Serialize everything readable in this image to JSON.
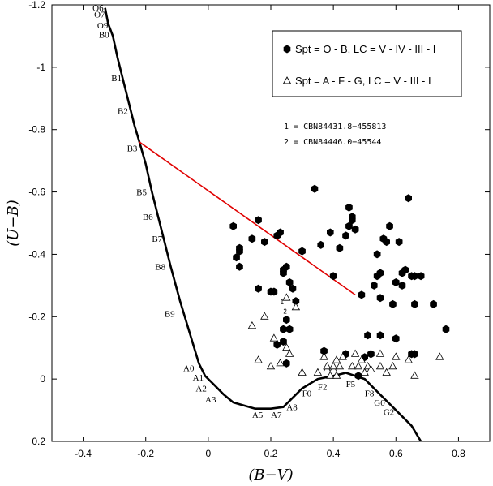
{
  "chart_data": {
    "type": "scatter",
    "xlabel": "(B−V)",
    "ylabel": "(U−B)",
    "xlim": [
      -0.5,
      0.9
    ],
    "ylim": [
      -1.2,
      0.2
    ],
    "y_inverted": true,
    "xticks": [
      {
        "value": -0.4,
        "label": "-0.4"
      },
      {
        "value": -0.2,
        "label": "-0.2"
      },
      {
        "value": 0,
        "label": "0"
      },
      {
        "value": 0.2,
        "label": "0.2"
      },
      {
        "value": 0.4,
        "label": "0.4"
      },
      {
        "value": 0.6,
        "label": "0.6"
      },
      {
        "value": 0.8,
        "label": "0.8"
      }
    ],
    "yticks": [
      {
        "value": -1.2,
        "label": "-1.2"
      },
      {
        "value": -1.0,
        "label": "-1"
      },
      {
        "value": -0.8,
        "label": "-0.8"
      },
      {
        "value": -0.6,
        "label": "-0.6"
      },
      {
        "value": -0.4,
        "label": "-0.4"
      },
      {
        "value": -0.2,
        "label": "-0.2"
      },
      {
        "value": 0,
        "label": "0"
      },
      {
        "value": 0.2,
        "label": "0.2"
      }
    ],
    "legend": {
      "placement": "top-right",
      "entries": [
        {
          "marker": "filled-hexagon",
          "label": "Spt = O - B, LC = V - IV - III - I"
        },
        {
          "marker": "open-triangle",
          "label": "Spt = A - F - G, LC = V - III - I"
        }
      ]
    },
    "annotations": [
      "1 = CBN84431.8−455813",
      "2 = CBN84446.0−45544"
    ],
    "point_labels": [
      {
        "text": "1",
        "x": 0.23,
        "y": -0.24
      },
      {
        "text": "2",
        "x": 0.24,
        "y": -0.21
      }
    ],
    "intrinsic_sequence": {
      "color": "#000000",
      "points": [
        [
          -0.33,
          -1.19
        ],
        [
          -0.32,
          -1.14
        ],
        [
          -0.305,
          -1.1
        ],
        [
          -0.29,
          -1.03
        ],
        [
          -0.27,
          -0.95
        ],
        [
          -0.25,
          -0.87
        ],
        [
          -0.235,
          -0.81
        ],
        [
          -0.22,
          -0.76
        ],
        [
          -0.2,
          -0.69
        ],
        [
          -0.18,
          -0.6
        ],
        [
          -0.16,
          -0.52
        ],
        [
          -0.14,
          -0.44
        ],
        [
          -0.12,
          -0.36
        ],
        [
          -0.09,
          -0.25
        ],
        [
          -0.06,
          -0.15
        ],
        [
          -0.03,
          -0.05
        ],
        [
          -0.01,
          -0.01
        ],
        [
          0.02,
          0.02
        ],
        [
          0.05,
          0.05
        ],
        [
          0.08,
          0.075
        ],
        [
          0.15,
          0.095
        ],
        [
          0.2,
          0.095
        ],
        [
          0.24,
          0.09
        ],
        [
          0.3,
          0.03
        ],
        [
          0.35,
          0.0
        ],
        [
          0.4,
          -0.01
        ],
        [
          0.44,
          -0.02
        ],
        [
          0.5,
          0.0
        ],
        [
          0.55,
          0.05
        ],
        [
          0.6,
          0.1
        ],
        [
          0.65,
          0.15
        ],
        [
          0.68,
          0.2
        ]
      ]
    },
    "sequence_labels": [
      {
        "text": "O6",
        "x": -0.37,
        "y": -1.18
      },
      {
        "text": "O7",
        "x": -0.365,
        "y": -1.16
      },
      {
        "text": "O9",
        "x": -0.355,
        "y": -1.125
      },
      {
        "text": "B0",
        "x": -0.35,
        "y": -1.095
      },
      {
        "text": "B1",
        "x": -0.31,
        "y": -0.955
      },
      {
        "text": "B2",
        "x": -0.29,
        "y": -0.85
      },
      {
        "text": "B3",
        "x": -0.26,
        "y": -0.73
      },
      {
        "text": "B5",
        "x": -0.23,
        "y": -0.59
      },
      {
        "text": "B6",
        "x": -0.21,
        "y": -0.51
      },
      {
        "text": "B7",
        "x": -0.18,
        "y": -0.44
      },
      {
        "text": "B8",
        "x": -0.17,
        "y": -0.35
      },
      {
        "text": "B9",
        "x": -0.14,
        "y": -0.2
      },
      {
        "text": "A0",
        "x": -0.08,
        "y": -0.025
      },
      {
        "text": "A1",
        "x": -0.05,
        "y": 0.005
      },
      {
        "text": "A2",
        "x": -0.04,
        "y": 0.04
      },
      {
        "text": "A3",
        "x": -0.01,
        "y": 0.075
      },
      {
        "text": "A5",
        "x": 0.14,
        "y": 0.125
      },
      {
        "text": "A7",
        "x": 0.2,
        "y": 0.125
      },
      {
        "text": "A8",
        "x": 0.25,
        "y": 0.1
      },
      {
        "text": "F0",
        "x": 0.3,
        "y": 0.055
      },
      {
        "text": "F2",
        "x": 0.35,
        "y": 0.035
      },
      {
        "text": "F5",
        "x": 0.44,
        "y": 0.025
      },
      {
        "text": "F8",
        "x": 0.5,
        "y": 0.055
      },
      {
        "text": "G0",
        "x": 0.53,
        "y": 0.085
      },
      {
        "text": "G2",
        "x": 0.56,
        "y": 0.115
      }
    ],
    "reddening_line": {
      "color": "#e00000",
      "points": [
        [
          -0.22,
          -0.76
        ],
        [
          0.47,
          -0.27
        ]
      ]
    },
    "series": [
      {
        "name": "Spt = O - B, LC = V - IV - III - I",
        "marker": "filled-hexagon",
        "color": "#000000",
        "points": [
          [
            0.08,
            -0.49
          ],
          [
            0.09,
            -0.39
          ],
          [
            0.1,
            -0.42
          ],
          [
            0.1,
            -0.41
          ],
          [
            0.1,
            -0.36
          ],
          [
            0.14,
            -0.45
          ],
          [
            0.16,
            -0.51
          ],
          [
            0.16,
            -0.29
          ],
          [
            0.18,
            -0.44
          ],
          [
            0.2,
            -0.28
          ],
          [
            0.21,
            -0.28
          ],
          [
            0.22,
            -0.46
          ],
          [
            0.23,
            -0.47
          ],
          [
            0.24,
            -0.35
          ],
          [
            0.24,
            -0.34
          ],
          [
            0.25,
            -0.36
          ],
          [
            0.26,
            -0.31
          ],
          [
            0.27,
            -0.29
          ],
          [
            0.28,
            -0.25
          ],
          [
            0.3,
            -0.41
          ],
          [
            0.22,
            -0.11
          ],
          [
            0.24,
            -0.12
          ],
          [
            0.25,
            -0.19
          ],
          [
            0.26,
            -0.16
          ],
          [
            0.24,
            -0.16
          ],
          [
            0.25,
            -0.05
          ],
          [
            0.34,
            -0.61
          ],
          [
            0.36,
            -0.43
          ],
          [
            0.37,
            -0.09
          ],
          [
            0.39,
            -0.47
          ],
          [
            0.4,
            -0.33
          ],
          [
            0.42,
            -0.42
          ],
          [
            0.44,
            -0.46
          ],
          [
            0.45,
            -0.49
          ],
          [
            0.45,
            -0.55
          ],
          [
            0.46,
            -0.52
          ],
          [
            0.47,
            -0.48
          ],
          [
            0.46,
            -0.51
          ],
          [
            0.44,
            -0.08
          ],
          [
            0.48,
            -0.01
          ],
          [
            0.49,
            -0.27
          ],
          [
            0.5,
            -0.07
          ],
          [
            0.51,
            -0.14
          ],
          [
            0.52,
            -0.08
          ],
          [
            0.53,
            -0.3
          ],
          [
            0.54,
            -0.33
          ],
          [
            0.55,
            -0.34
          ],
          [
            0.55,
            -0.26
          ],
          [
            0.55,
            -0.14
          ],
          [
            0.57,
            -0.44
          ],
          [
            0.58,
            -0.49
          ],
          [
            0.59,
            -0.24
          ],
          [
            0.6,
            -0.31
          ],
          [
            0.6,
            -0.13
          ],
          [
            0.61,
            -0.44
          ],
          [
            0.62,
            -0.34
          ],
          [
            0.62,
            -0.3
          ],
          [
            0.63,
            -0.35
          ],
          [
            0.64,
            -0.58
          ],
          [
            0.65,
            -0.33
          ],
          [
            0.65,
            -0.08
          ],
          [
            0.66,
            -0.08
          ],
          [
            0.66,
            -0.24
          ],
          [
            0.66,
            -0.33
          ],
          [
            0.68,
            -0.33
          ],
          [
            0.72,
            -0.24
          ],
          [
            0.76,
            -0.16
          ],
          [
            0.54,
            -0.4
          ],
          [
            0.56,
            -0.45
          ]
        ]
      },
      {
        "name": "Spt = A - F - G, LC = V - III - I",
        "marker": "open-triangle",
        "color": "#000000",
        "points": [
          [
            0.14,
            -0.17
          ],
          [
            0.16,
            -0.06
          ],
          [
            0.18,
            -0.2
          ],
          [
            0.2,
            -0.04
          ],
          [
            0.21,
            -0.13
          ],
          [
            0.23,
            -0.05
          ],
          [
            0.25,
            -0.1
          ],
          [
            0.26,
            -0.08
          ],
          [
            0.25,
            -0.26
          ],
          [
            0.28,
            -0.23
          ],
          [
            0.3,
            -0.02
          ],
          [
            0.35,
            -0.02
          ],
          [
            0.37,
            -0.07
          ],
          [
            0.38,
            -0.03
          ],
          [
            0.38,
            -0.04
          ],
          [
            0.39,
            -0.01
          ],
          [
            0.4,
            -0.03
          ],
          [
            0.4,
            -0.04
          ],
          [
            0.41,
            -0.06
          ],
          [
            0.41,
            -0.01
          ],
          [
            0.42,
            -0.04
          ],
          [
            0.43,
            -0.07
          ],
          [
            0.46,
            -0.04
          ],
          [
            0.47,
            -0.08
          ],
          [
            0.48,
            -0.04
          ],
          [
            0.49,
            -0.06
          ],
          [
            0.5,
            -0.02
          ],
          [
            0.51,
            -0.04
          ],
          [
            0.52,
            -0.03
          ],
          [
            0.55,
            -0.04
          ],
          [
            0.55,
            -0.08
          ],
          [
            0.57,
            -0.02
          ],
          [
            0.59,
            -0.04
          ],
          [
            0.6,
            -0.07
          ],
          [
            0.64,
            -0.06
          ],
          [
            0.66,
            -0.01
          ],
          [
            0.74,
            -0.07
          ]
        ]
      }
    ]
  }
}
